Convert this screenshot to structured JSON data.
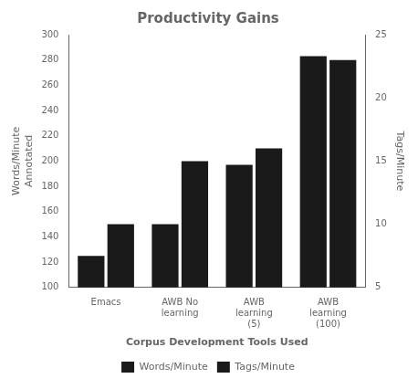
{
  "chart_data": {
    "type": "bar",
    "title": "Productivity Gains",
    "categories": [
      "Emacs",
      "AWB No\nlearning",
      "AWB\nlearning\n(5)",
      "AWB\nlearning\n(100)"
    ],
    "series": [
      {
        "name": "Words/Minute",
        "color": "#1a1a1a",
        "values": [
          125,
          150,
          197,
          283
        ]
      },
      {
        "name": "Tags/Minute",
        "color": "#1a1a1a",
        "values": [
          10,
          15,
          16,
          23
        ],
        "axis": "y2"
      }
    ],
    "xlabel": "Corpus Development Tools Used",
    "ylabel": "Words/Minute\nAnnotated",
    "y2label": "Tags/Minute",
    "ylim": [
      100,
      300
    ],
    "yticks": [
      100,
      120,
      140,
      160,
      180,
      200,
      220,
      240,
      260,
      280,
      300
    ],
    "y2lim": [
      5,
      25
    ],
    "y2ticks": [
      5,
      10,
      15,
      20,
      25
    ],
    "grid": false,
    "legend": "bottom"
  }
}
